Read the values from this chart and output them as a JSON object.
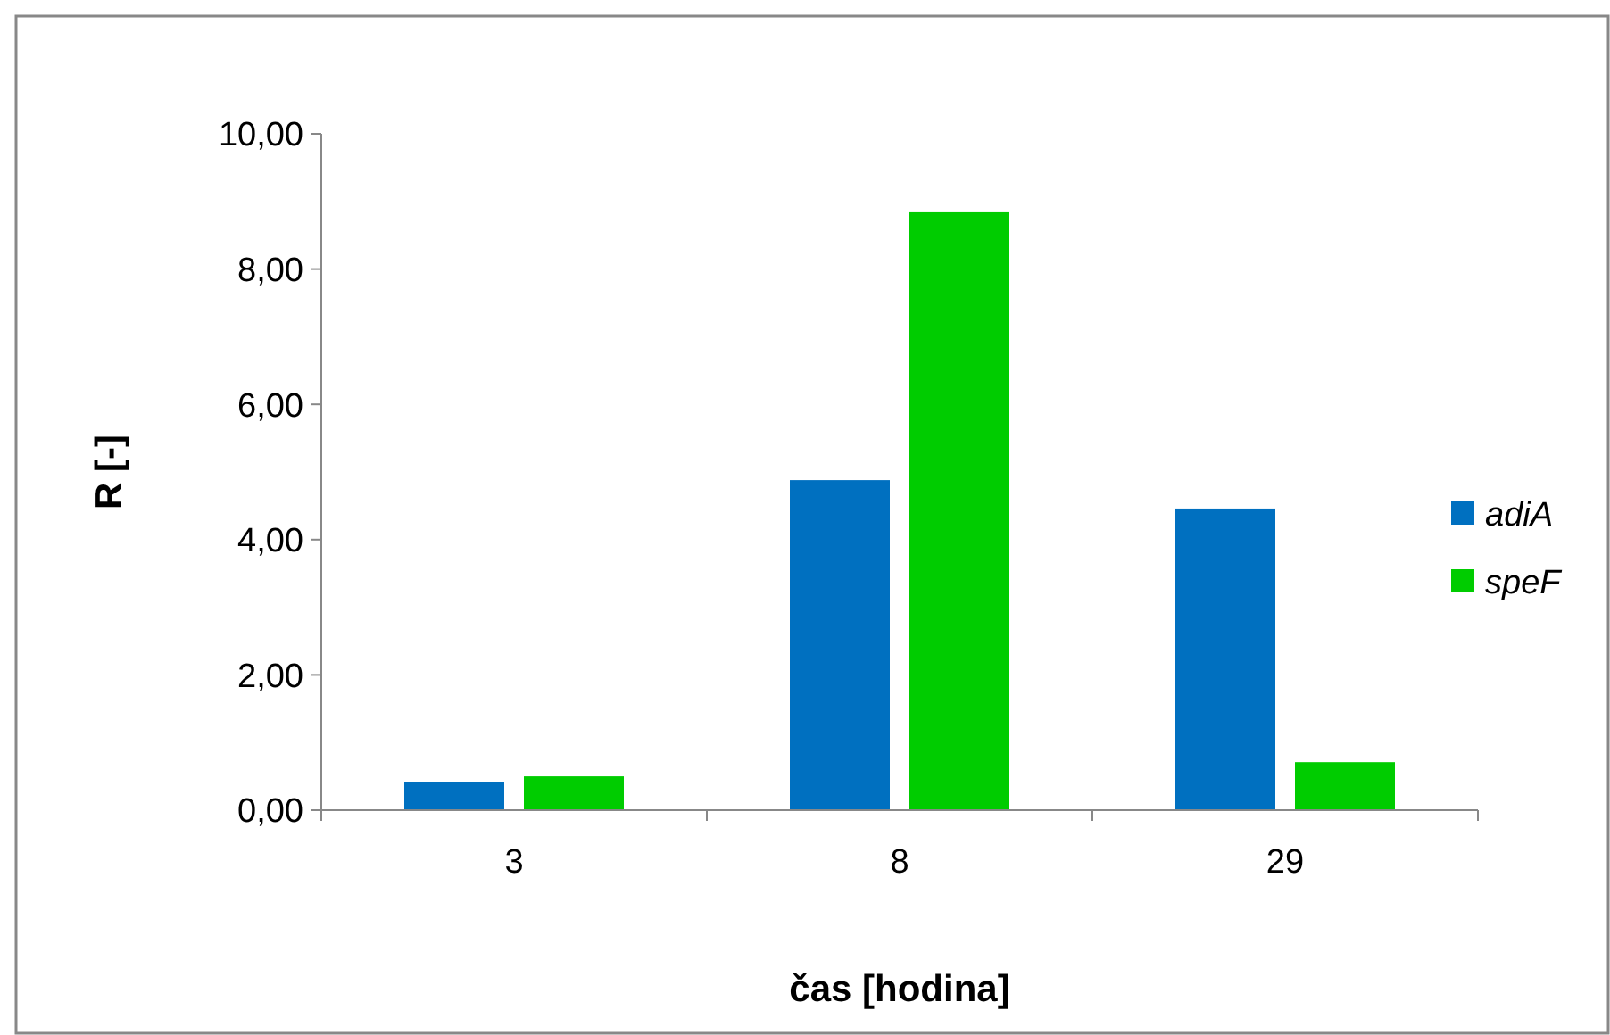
{
  "chart_data": {
    "type": "bar",
    "xlabel": "čas [hodina]",
    "ylabel": "R [-]",
    "categories": [
      "3",
      "8",
      "29"
    ],
    "series": [
      {
        "name": "adiA",
        "color": "#0070c0",
        "values": [
          0.42,
          4.88,
          4.46
        ]
      },
      {
        "name": "speF",
        "color": "#00cc00",
        "values": [
          0.5,
          8.84,
          0.71
        ]
      }
    ],
    "ylim": [
      0,
      10
    ],
    "yticks": [
      {
        "value": 0,
        "label": "0,00"
      },
      {
        "value": 2,
        "label": "2,00"
      },
      {
        "value": 4,
        "label": "4,00"
      },
      {
        "value": 6,
        "label": "6,00"
      },
      {
        "value": 8,
        "label": "8,00"
      },
      {
        "value": 10,
        "label": "10,00"
      }
    ],
    "grid": false,
    "legend": "right"
  }
}
